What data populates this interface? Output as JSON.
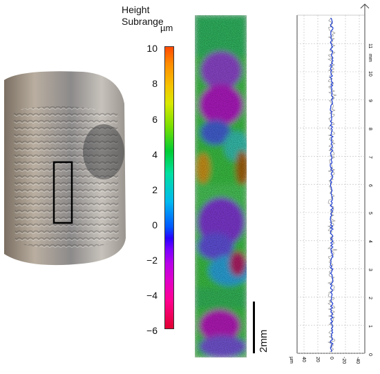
{
  "colorbar": {
    "title_line1": "Height",
    "title_line2": "Subrange",
    "unit": "µm",
    "ticks": [
      "10",
      "8",
      "6",
      "4",
      "2",
      "0",
      "−2",
      "−4",
      "−6"
    ],
    "range": [
      -6,
      10
    ]
  },
  "scalebar": {
    "label": "2mm"
  },
  "profile": {
    "axis_unit_bottom": "µm",
    "axis_unit_right": "mm",
    "x_ticks": [
      "40",
      "20",
      "0",
      "-20",
      "-40"
    ],
    "y_ticks": [
      "11",
      "10",
      "9",
      "8",
      "7",
      "6",
      "5",
      "4",
      "3",
      "2",
      "1",
      "0"
    ],
    "line_color": "#1f3fd6"
  },
  "colors": {
    "highlight_box": "#000000"
  }
}
